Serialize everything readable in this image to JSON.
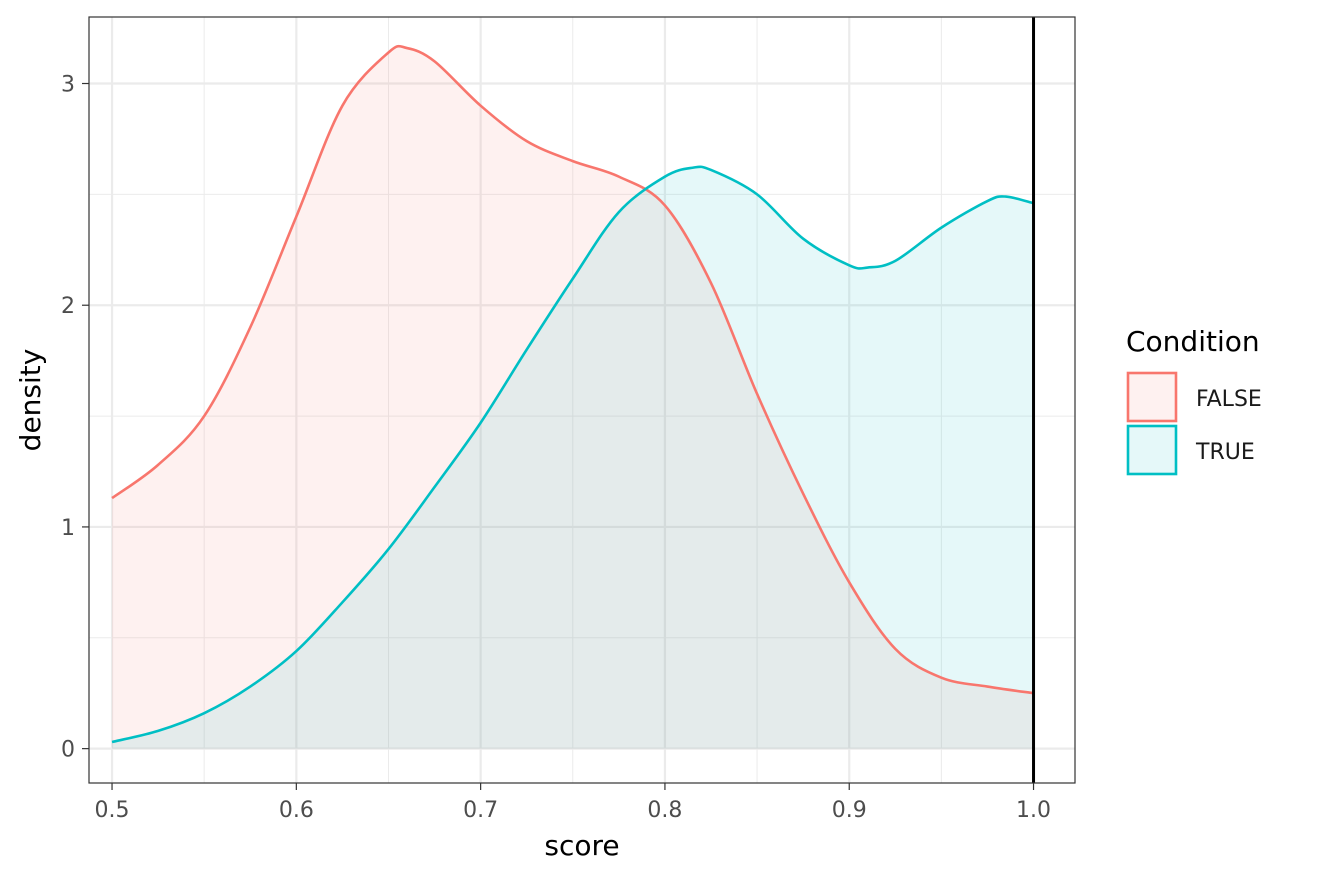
{
  "chart_data": {
    "type": "area",
    "title": "",
    "xlabel": "score",
    "ylabel": "density",
    "xlim": [
      0.4875,
      1.0225
    ],
    "ylim": [
      -0.155,
      3.3
    ],
    "x_ticks": [
      0.5,
      0.6,
      0.7,
      0.8,
      0.9,
      1.0
    ],
    "x_tick_labels": [
      "0.5",
      "0.6",
      "0.7",
      "0.8",
      "0.9",
      "1.0"
    ],
    "y_ticks": [
      0,
      1,
      2,
      3
    ],
    "y_tick_labels": [
      "0",
      "1",
      "2",
      "3"
    ],
    "grid": true,
    "vline_x": 1.0,
    "legend": {
      "title": "Condition",
      "position": "right"
    },
    "series": [
      {
        "name": "FALSE",
        "color": "#F8766D",
        "fill": "#F8766D",
        "x": [
          0.5,
          0.525,
          0.55,
          0.575,
          0.6,
          0.625,
          0.65,
          0.66,
          0.675,
          0.7,
          0.725,
          0.75,
          0.775,
          0.8,
          0.825,
          0.85,
          0.875,
          0.9,
          0.925,
          0.95,
          0.975,
          1.0
        ],
        "values": [
          1.13,
          1.28,
          1.5,
          1.9,
          2.4,
          2.9,
          3.14,
          3.16,
          3.1,
          2.9,
          2.74,
          2.65,
          2.58,
          2.45,
          2.1,
          1.6,
          1.15,
          0.75,
          0.45,
          0.32,
          0.28,
          0.25
        ]
      },
      {
        "name": "TRUE",
        "color": "#00BFC4",
        "fill": "#00BFC4",
        "x": [
          0.5,
          0.525,
          0.55,
          0.575,
          0.6,
          0.625,
          0.65,
          0.675,
          0.7,
          0.725,
          0.75,
          0.775,
          0.8,
          0.815,
          0.825,
          0.85,
          0.875,
          0.9,
          0.91,
          0.925,
          0.95,
          0.975,
          0.985,
          1.0
        ],
        "values": [
          0.03,
          0.08,
          0.16,
          0.28,
          0.44,
          0.66,
          0.9,
          1.18,
          1.47,
          1.8,
          2.12,
          2.42,
          2.58,
          2.62,
          2.61,
          2.5,
          2.3,
          2.18,
          2.17,
          2.2,
          2.35,
          2.47,
          2.49,
          2.46
        ]
      }
    ]
  }
}
